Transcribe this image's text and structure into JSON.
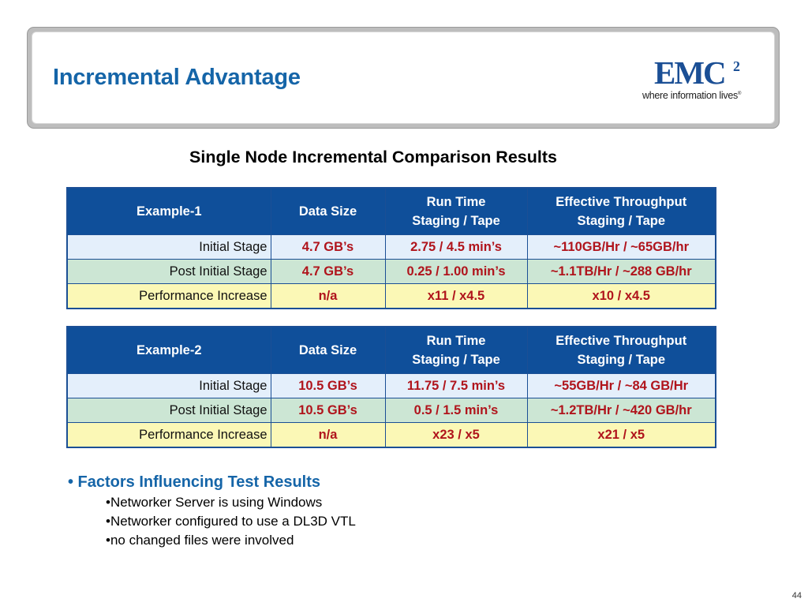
{
  "header": {
    "title": "Incremental Advantage",
    "logo": {
      "mark": "EMC",
      "superscript": "2",
      "tagline": "where information lives",
      "registered": "®"
    }
  },
  "section_title": "Single Node Incremental Comparison Results",
  "tables": [
    {
      "headers": [
        "Example-1",
        "Data Size",
        "Run Time\nStaging / Tape",
        "Effective Throughput\nStaging / Tape"
      ],
      "rows": [
        {
          "label": "Initial Stage",
          "data_size": "4.7 GB’s",
          "run_time": "2.75 / 4.5 min’s",
          "throughput": "~110GB/Hr / ~65GB/hr"
        },
        {
          "label": "Post Initial Stage",
          "data_size": "4.7 GB’s",
          "run_time": "0.25 / 1.00 min’s",
          "throughput": "~1.1TB/Hr / ~288 GB/hr"
        },
        {
          "label": "Performance Increase",
          "data_size": "n/a",
          "run_time": "x11 / x4.5",
          "throughput": "x10 / x4.5"
        }
      ]
    },
    {
      "headers": [
        "Example-2",
        "Data Size",
        "Run Time\nStaging / Tape",
        "Effective Throughput\nStaging / Tape"
      ],
      "rows": [
        {
          "label": "Initial Stage",
          "data_size": "10.5 GB’s",
          "run_time": "11.75 / 7.5 min’s",
          "throughput": "~55GB/Hr / ~84 GB/Hr"
        },
        {
          "label": "Post Initial Stage",
          "data_size": "10.5 GB’s",
          "run_time": "0.5 / 1.5 min’s",
          "throughput": "~1.2TB/Hr / ~420 GB/hr"
        },
        {
          "label": "Performance Increase",
          "data_size": "n/a",
          "run_time": "x23 / x5",
          "throughput": "x21 / x5"
        }
      ]
    }
  ],
  "factors": {
    "heading": "• Factors Influencing Test Results",
    "items": [
      "•Networker Server is using Windows",
      "•Networker configured to use a DL3D VTL",
      "•no changed files were involved"
    ]
  },
  "page_number": "44",
  "colors": {
    "title_blue": "#1565a8",
    "table_header": "#0f4f9a",
    "value_red": "#b0141c",
    "row_initial": "#e4effb",
    "row_post": "#cce6d4",
    "row_increase": "#fbf8b6"
  }
}
